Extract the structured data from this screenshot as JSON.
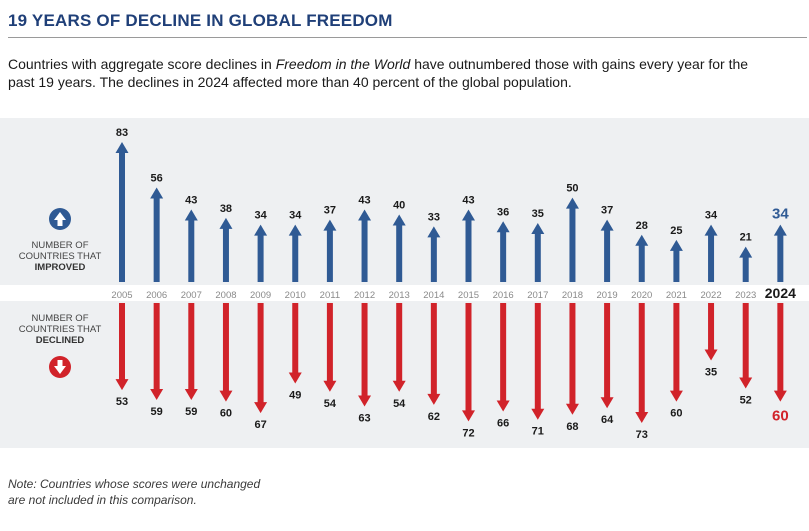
{
  "header": {
    "title": "19 YEARS OF DECLINE IN GLOBAL FREEDOM",
    "subtitle_before": "Countries with aggregate score declines in ",
    "subtitle_italic": "Freedom in the World",
    "subtitle_after": " have outnumbered those with gains every year for the past 19 years. The declines in 2024 affected more than 40 percent of the global population."
  },
  "legend": {
    "improved_line1": "NUMBER OF",
    "improved_line2": "COUNTRIES THAT",
    "improved_line3": "IMPROVED",
    "declined_line1": "NUMBER OF",
    "declined_line2": "COUNTRIES THAT",
    "declined_line3": "DECLINED",
    "up_icon": "arrow-up-circle-icon",
    "down_icon": "arrow-down-circle-icon"
  },
  "note": {
    "line1": "Note: Countries whose scores were unchanged",
    "line2": "are not included in this comparison."
  },
  "colors": {
    "improved": "#2f5a94",
    "declined": "#d1232a",
    "title": "#1f3f78",
    "band": "#eef0f2",
    "year": "#8a8a8a"
  },
  "chart_data": {
    "type": "bar",
    "title": "19 YEARS OF DECLINE IN GLOBAL FREEDOM",
    "categories": [
      "2005",
      "2006",
      "2007",
      "2008",
      "2009",
      "2010",
      "2011",
      "2012",
      "2013",
      "2014",
      "2015",
      "2016",
      "2017",
      "2018",
      "2019",
      "2020",
      "2021",
      "2022",
      "2023",
      "2024"
    ],
    "series": [
      {
        "name": "Number of countries that improved",
        "direction": "up",
        "values": [
          83,
          56,
          43,
          38,
          34,
          34,
          37,
          43,
          40,
          33,
          43,
          36,
          35,
          50,
          37,
          28,
          25,
          34,
          21,
          34
        ]
      },
      {
        "name": "Number of countries that declined",
        "direction": "down",
        "values": [
          53,
          59,
          59,
          60,
          67,
          49,
          54,
          63,
          54,
          62,
          72,
          66,
          71,
          68,
          64,
          73,
          60,
          35,
          52,
          60
        ]
      }
    ],
    "highlight_category": "2024",
    "xlabel": "",
    "ylabel": "",
    "legend": [
      "NUMBER OF COUNTRIES THAT IMPROVED",
      "NUMBER OF COUNTRIES THAT DECLINED"
    ]
  }
}
